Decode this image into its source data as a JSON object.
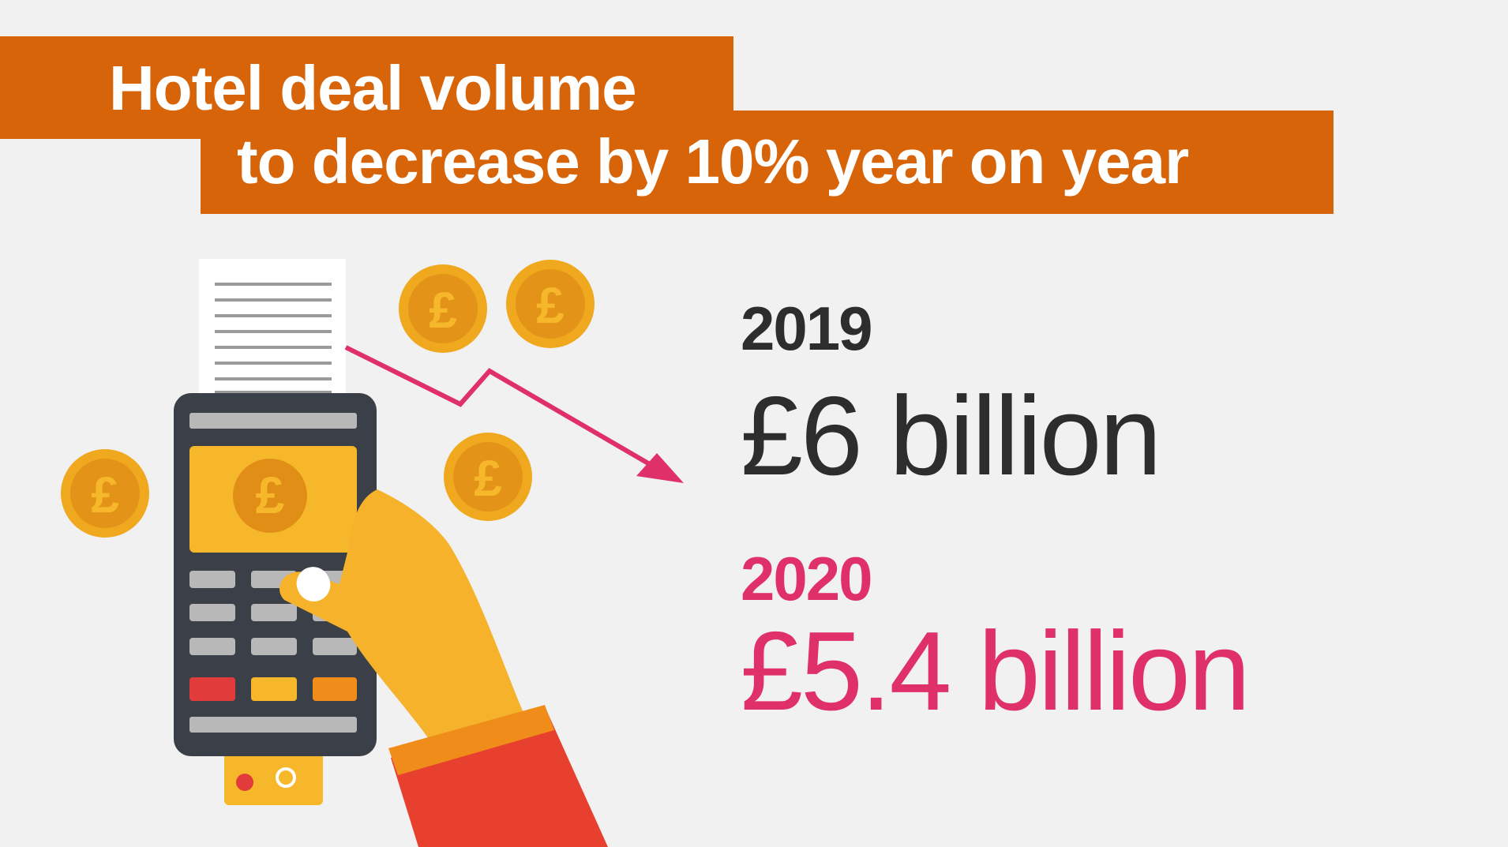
{
  "title": {
    "line1": "Hotel deal volume",
    "line2": "to decrease by 10% year on year"
  },
  "stats": [
    {
      "year": "2019",
      "amount": "£6 billion"
    },
    {
      "year": "2020",
      "amount": "£5.4 billion"
    }
  ],
  "coin_symbol": "£",
  "colors": {
    "banner": "#d8640a",
    "coin": "#f0a81f",
    "coin_dark": "#e08e16",
    "terminal": "#3b3f47",
    "screen": "#f6b82a",
    "arrow": "#e0306a",
    "hand": "#f6b22a",
    "sleeve": "#e8402f",
    "text_2019": "#2d2d2d",
    "text_2020": "#e0306a",
    "background": "#f1f1f1"
  },
  "icons": [
    "card-terminal-icon",
    "receipt-icon",
    "pound-coin-icon",
    "down-trend-arrow-icon",
    "hand-icon",
    "bank-card-icon"
  ]
}
